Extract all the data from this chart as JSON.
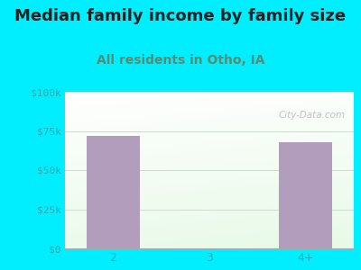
{
  "title": "Median family income by family size",
  "subtitle": "All residents in Otho, IA",
  "categories": [
    "2",
    "3",
    "4+"
  ],
  "values": [
    72000,
    0,
    68000
  ],
  "bar_color": "#b39dbd",
  "background_outer": "#00eeff",
  "ylim": [
    0,
    100000
  ],
  "yticks": [
    0,
    25000,
    50000,
    75000,
    100000
  ],
  "ytick_labels": [
    "$0",
    "$25k",
    "$50k",
    "$75k",
    "$100k"
  ],
  "title_fontsize": 13,
  "subtitle_fontsize": 10,
  "title_color": "#222222",
  "subtitle_color": "#5b8a6e",
  "tick_color": "#33aaaa",
  "watermark": "City-Data.com",
  "grid_color": "#ccddcc",
  "bar_width": 0.55
}
